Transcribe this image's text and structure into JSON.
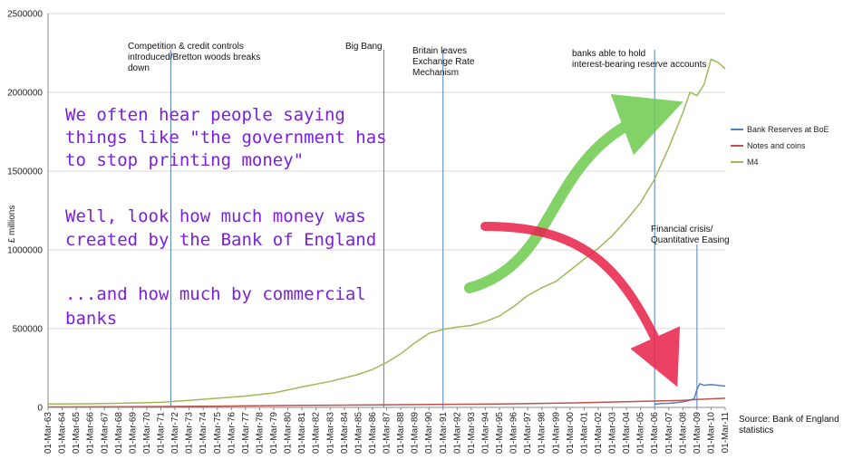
{
  "chart_data": {
    "type": "line",
    "title": "",
    "xlabel": "",
    "ylabel": "£ millions",
    "ylim": [
      0,
      2500000
    ],
    "y_ticks": [
      "0",
      "500000",
      "1000000",
      "1500000",
      "2000000",
      "2500000"
    ],
    "x_ticks": [
      "01-Mar-63",
      "01-Mar-64",
      "01-Mar-65",
      "01-Mar-66",
      "01-Mar-67",
      "01-Mar-68",
      "01-Mar-69",
      "01-Mar-70",
      "01-Mar-71",
      "01-Mar-72",
      "01-Mar-73",
      "01-Mar-74",
      "01-Mar-75",
      "01-Mar-76",
      "01-Mar-77",
      "01-Mar-78",
      "01-Mar-79",
      "01-Mar-80",
      "01-Mar-81",
      "01-Mar-82",
      "01-Mar-83",
      "01-Mar-84",
      "01-Mar-85",
      "01-Mar-86",
      "01-Mar-87",
      "01-Mar-88",
      "01-Mar-89",
      "01-Mar-90",
      "01-Mar-91",
      "01-Mar-92",
      "01-Mar-93",
      "01-Mar-94",
      "01-Mar-95",
      "01-Mar-96",
      "01-Mar-97",
      "01-Mar-98",
      "01-Mar-99",
      "01-Mar-00",
      "01-Mar-01",
      "01-Mar-02",
      "01-Mar-03",
      "01-Mar-04",
      "01-Mar-05",
      "01-Mar-06",
      "01-Mar-07",
      "01-Mar-08",
      "01-Mar-09",
      "01-Mar-10",
      "01-Mar-11"
    ],
    "grid": "horizontal",
    "legend_position": "right",
    "series": [
      {
        "name": "Bank Reserves at BoE",
        "color": "#4f81bd",
        "points": [
          [
            2006.0,
            20000
          ],
          [
            2006.5,
            25000
          ],
          [
            2007.0,
            26000
          ],
          [
            2007.5,
            30000
          ],
          [
            2008.0,
            35000
          ],
          [
            2008.5,
            45000
          ],
          [
            2008.8,
            55000
          ],
          [
            2009.0,
            115000
          ],
          [
            2009.2,
            150000
          ],
          [
            2009.5,
            140000
          ],
          [
            2010.0,
            145000
          ],
          [
            2010.5,
            140000
          ],
          [
            2011.0,
            135000
          ]
        ]
      },
      {
        "name": "Notes and coins",
        "color": "#c0504d",
        "points": [
          [
            1963,
            3000
          ],
          [
            1970,
            5000
          ],
          [
            1975,
            8000
          ],
          [
            1980,
            12000
          ],
          [
            1985,
            15000
          ],
          [
            1990,
            19000
          ],
          [
            1995,
            22000
          ],
          [
            2000,
            28000
          ],
          [
            2005,
            38000
          ],
          [
            2008,
            45000
          ],
          [
            2009,
            50000
          ],
          [
            2011,
            58000
          ]
        ]
      },
      {
        "name": "M4",
        "color": "#9bbb59",
        "points": [
          [
            1963,
            21000
          ],
          [
            1966,
            23000
          ],
          [
            1969,
            28000
          ],
          [
            1971,
            32000
          ],
          [
            1973,
            45000
          ],
          [
            1975,
            58000
          ],
          [
            1977,
            72000
          ],
          [
            1979,
            92000
          ],
          [
            1981,
            130000
          ],
          [
            1983,
            165000
          ],
          [
            1985,
            210000
          ],
          [
            1986,
            240000
          ],
          [
            1987,
            285000
          ],
          [
            1988,
            340000
          ],
          [
            1989,
            410000
          ],
          [
            1990,
            470000
          ],
          [
            1991,
            495000
          ],
          [
            1992,
            510000
          ],
          [
            1993,
            520000
          ],
          [
            1994,
            545000
          ],
          [
            1995,
            580000
          ],
          [
            1996,
            640000
          ],
          [
            1997,
            710000
          ],
          [
            1998,
            760000
          ],
          [
            1999,
            800000
          ],
          [
            2000,
            870000
          ],
          [
            2001,
            940000
          ],
          [
            2002,
            1010000
          ],
          [
            2003,
            1090000
          ],
          [
            2004,
            1190000
          ],
          [
            2005,
            1300000
          ],
          [
            2006,
            1450000
          ],
          [
            2007,
            1650000
          ],
          [
            2008,
            1870000
          ],
          [
            2008.5,
            2000000
          ],
          [
            2009,
            1980000
          ],
          [
            2009.5,
            2050000
          ],
          [
            2010,
            2210000
          ],
          [
            2010.5,
            2190000
          ],
          [
            2011,
            2150000
          ]
        ]
      }
    ],
    "event_lines": [
      {
        "x": 1971.7,
        "text": [
          "Competition & credit controls",
          "introduced/Bretton woods breaks",
          "down"
        ]
      },
      {
        "x": 1986.8,
        "text": [
          "Big Bang"
        ]
      },
      {
        "x": 1991.0,
        "text": [
          "Britain leaves",
          "Exchange Rate",
          "Mechanism"
        ]
      },
      {
        "x": 2006.0,
        "text": [
          "banks able to hold",
          "interest-bearing reserve accounts"
        ]
      },
      {
        "x": 2009.0,
        "text": [
          "Financial crisis/",
          "Quantitative Easing"
        ]
      }
    ],
    "annotations": {
      "handwritten": [
        "We often hear people saying",
        "things like \"the government has",
        "to stop printing money\"",
        "Well, look how much money was",
        "created by the Bank of England",
        "...and how much by commercial",
        "banks"
      ],
      "source": [
        "Source: Bank of England",
        "statistics"
      ]
    }
  }
}
